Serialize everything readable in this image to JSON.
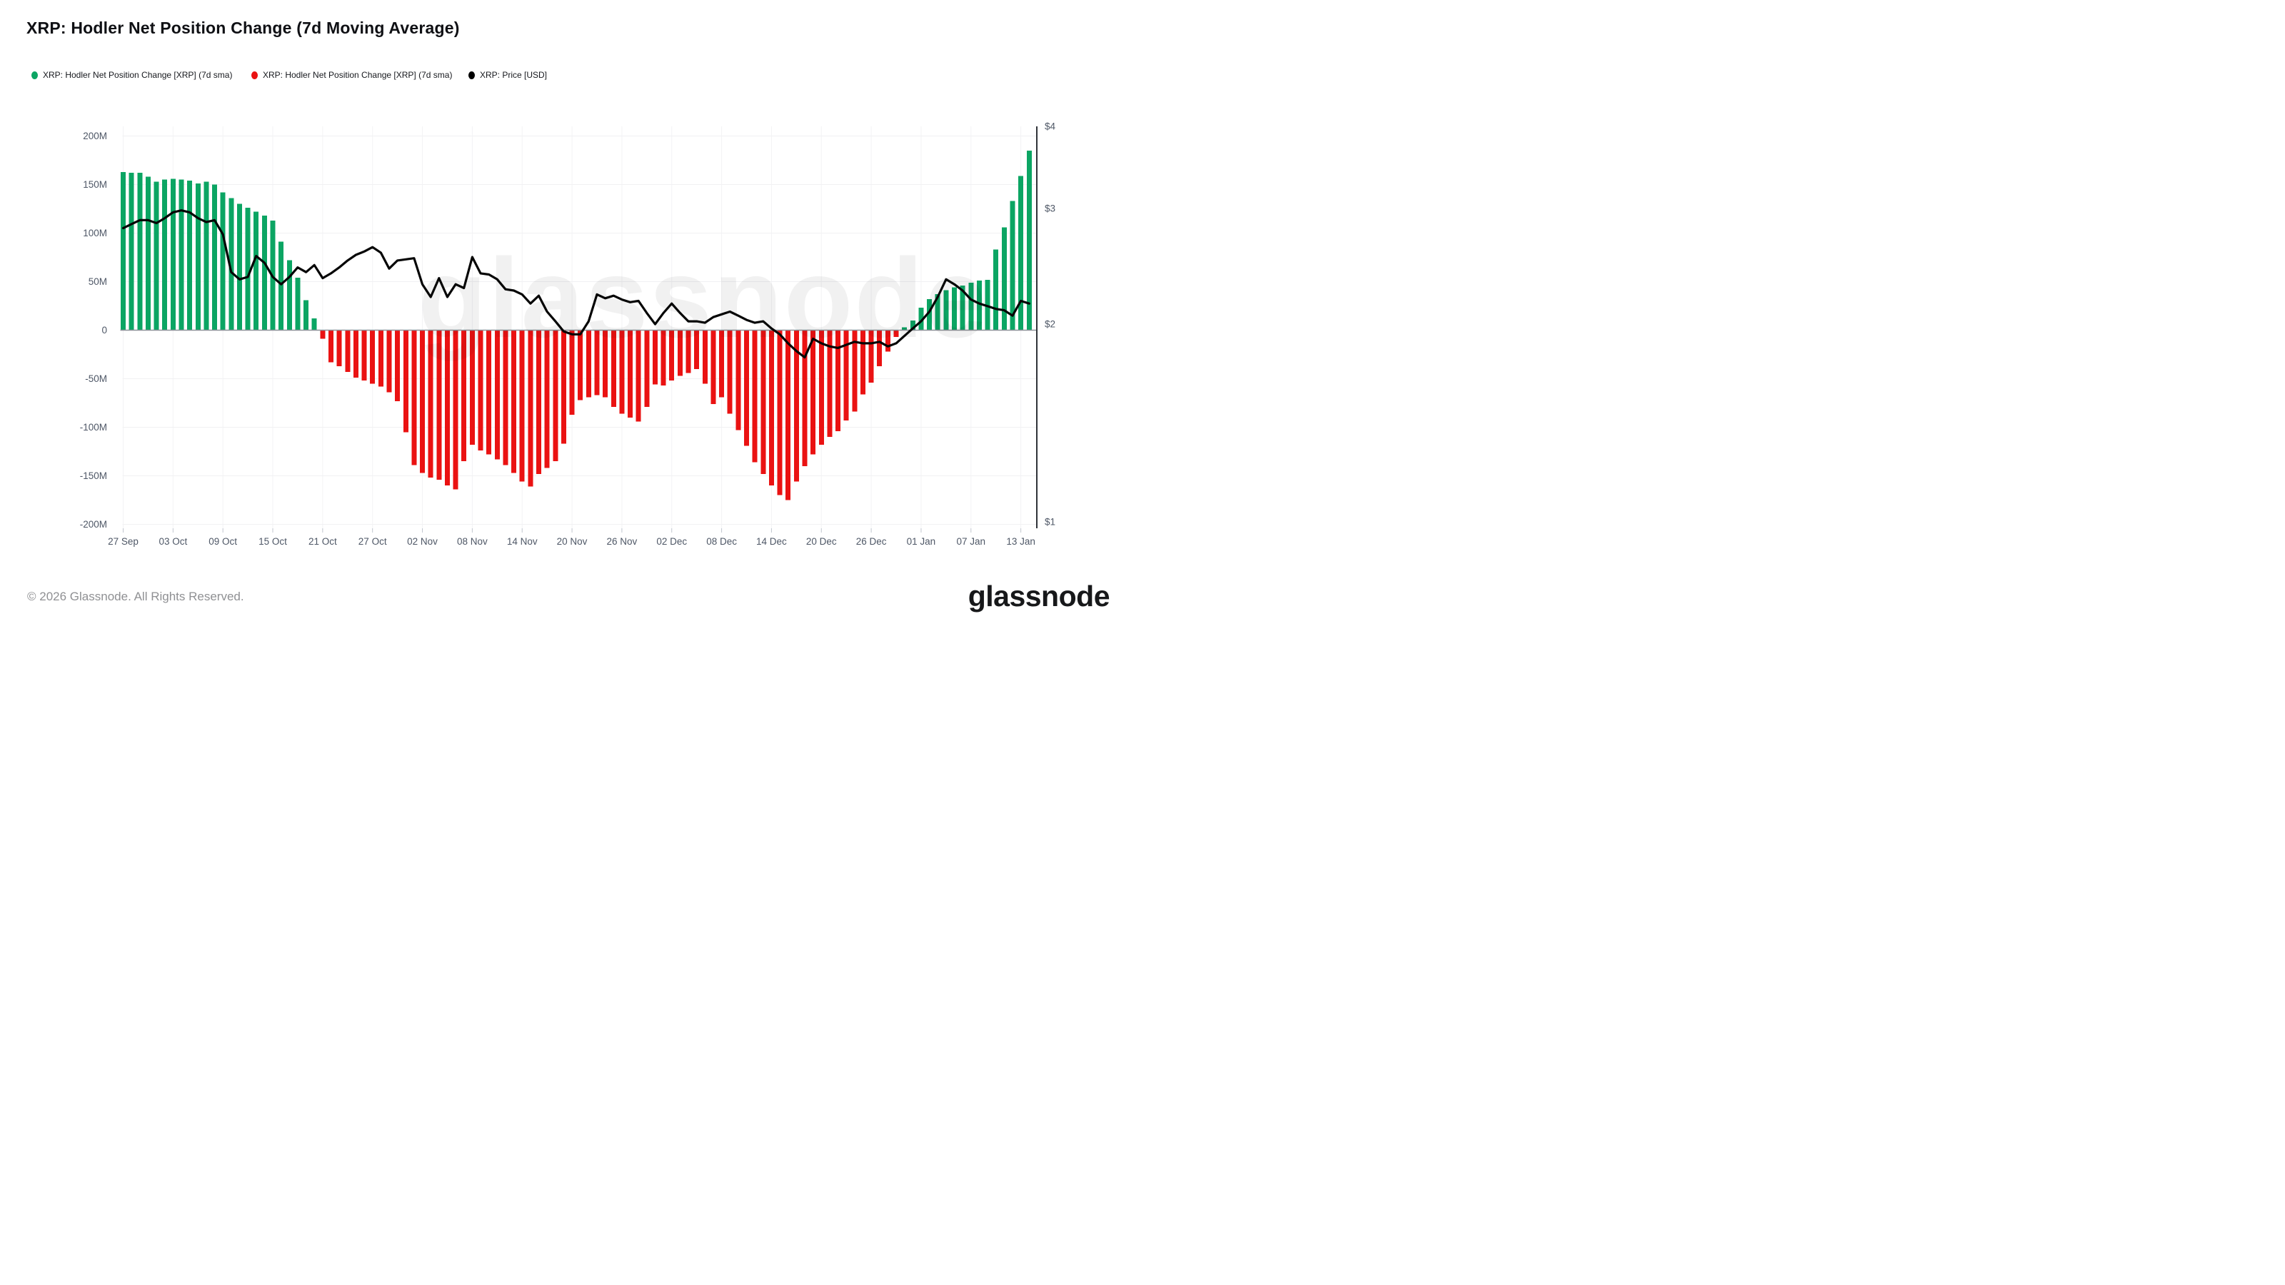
{
  "header": {
    "title": "XRP: Hodler Net Position Change (7d Moving Average)"
  },
  "legend": {
    "position": "top-left",
    "items": [
      {
        "label": "XRP: Hodler Net Position Change [XRP] (7d sma)",
        "color": "#0BA563",
        "icon": "green-dot-icon"
      },
      {
        "label": "XRP: Hodler Net Position Change [XRP] (7d sma)",
        "color": "#EA1212",
        "icon": "red-dot-icon"
      },
      {
        "label": "XRP: Price [USD]",
        "color": "#000000",
        "icon": "black-dot-icon"
      }
    ]
  },
  "watermark": {
    "text": "glassnode"
  },
  "footer": {
    "copyright": "© 2026 Glassnode. All Rights Reserved.",
    "logo_text": "glassnode"
  },
  "colors": {
    "bar_positive": "#0BA563",
    "bar_negative": "#EA1212",
    "price_line": "#050505",
    "grid_line": "#f1f1f3",
    "grid_line_vertical": "#f3f3f5",
    "zero_line": "#8e9299",
    "right_axis_line": "#2f3338",
    "axis_text": "#4e5766",
    "tick_mark": "#c2c7cf"
  },
  "chart_data": {
    "type": "bar",
    "title": "XRP: Hodler Net Position Change (7d Moving Average)",
    "xlabel": "",
    "ylabel_left": "Hodler Net Position Change (XRP, 7d sma)",
    "ylabel_right": "XRP Price (USD)",
    "grid": true,
    "left_axis": {
      "ylim": [
        -200000000,
        200000000
      ],
      "tick_values_m": [
        200,
        150,
        100,
        50,
        0,
        -50,
        -100,
        -150,
        -200
      ],
      "tick_labels": [
        "200M",
        "150M",
        "100M",
        "50M",
        "0",
        "-50M",
        "-100M",
        "-150M",
        "-200M"
      ]
    },
    "right_axis": {
      "scale": "log",
      "ylim": [
        1,
        4
      ],
      "tick_values": [
        4,
        3,
        2,
        1
      ],
      "tick_labels": [
        "$4",
        "$3",
        "$2",
        "$1"
      ]
    },
    "x_tick_labels": [
      "27 Sep",
      "03 Oct",
      "09 Oct",
      "15 Oct",
      "21 Oct",
      "27 Oct",
      "02 Nov",
      "08 Nov",
      "14 Nov",
      "20 Nov",
      "26 Nov",
      "02 Dec",
      "08 Dec",
      "14 Dec",
      "20 Dec",
      "26 Dec",
      "01 Jan",
      "07 Jan",
      "13 Jan"
    ],
    "x_tick_every_days": 6,
    "dates": [
      "2025-09-27",
      "2025-09-28",
      "2025-09-29",
      "2025-09-30",
      "2025-10-01",
      "2025-10-02",
      "2025-10-03",
      "2025-10-04",
      "2025-10-05",
      "2025-10-06",
      "2025-10-07",
      "2025-10-08",
      "2025-10-09",
      "2025-10-10",
      "2025-10-11",
      "2025-10-12",
      "2025-10-13",
      "2025-10-14",
      "2025-10-15",
      "2025-10-16",
      "2025-10-17",
      "2025-10-18",
      "2025-10-19",
      "2025-10-20",
      "2025-10-21",
      "2025-10-22",
      "2025-10-23",
      "2025-10-24",
      "2025-10-25",
      "2025-10-26",
      "2025-10-27",
      "2025-10-28",
      "2025-10-29",
      "2025-10-30",
      "2025-10-31",
      "2025-11-01",
      "2025-11-02",
      "2025-11-03",
      "2025-11-04",
      "2025-11-05",
      "2025-11-06",
      "2025-11-07",
      "2025-11-08",
      "2025-11-09",
      "2025-11-10",
      "2025-11-11",
      "2025-11-12",
      "2025-11-13",
      "2025-11-14",
      "2025-11-15",
      "2025-11-16",
      "2025-11-17",
      "2025-11-18",
      "2025-11-19",
      "2025-11-20",
      "2025-11-21",
      "2025-11-22",
      "2025-11-23",
      "2025-11-24",
      "2025-11-25",
      "2025-11-26",
      "2025-11-27",
      "2025-11-28",
      "2025-11-29",
      "2025-11-30",
      "2025-12-01",
      "2025-12-02",
      "2025-12-03",
      "2025-12-04",
      "2025-12-05",
      "2025-12-06",
      "2025-12-07",
      "2025-12-08",
      "2025-12-09",
      "2025-12-10",
      "2025-12-11",
      "2025-12-12",
      "2025-12-13",
      "2025-12-14",
      "2025-12-15",
      "2025-12-16",
      "2025-12-17",
      "2025-12-18",
      "2025-12-19",
      "2025-12-20",
      "2025-12-21",
      "2025-12-22",
      "2025-12-23",
      "2025-12-24",
      "2025-12-25",
      "2025-12-26",
      "2025-12-27",
      "2025-12-28",
      "2025-12-29",
      "2025-12-30",
      "2025-12-31",
      "2026-01-01",
      "2026-01-02",
      "2026-01-03",
      "2026-01-04",
      "2026-01-05",
      "2026-01-06",
      "2026-01-07",
      "2026-01-08",
      "2026-01-09",
      "2026-01-10",
      "2026-01-11",
      "2026-01-12",
      "2026-01-13",
      "2026-01-14"
    ],
    "series": [
      {
        "name": "XRP: Hodler Net Position Change [XRP] (7d sma)",
        "type": "bar",
        "axis": "left",
        "unit": "M XRP",
        "color_positive": "#0BA563",
        "color_negative": "#EA1212",
        "values_m": [
          163,
          162,
          162,
          158,
          153,
          155,
          156,
          155,
          154,
          151,
          153,
          150,
          142,
          136,
          130,
          126,
          122,
          118,
          113,
          91,
          72,
          54,
          31,
          12,
          -9,
          -33,
          -37,
          -43,
          -49,
          -52,
          -55,
          -58,
          -64,
          -73,
          -105,
          -139,
          -147,
          -152,
          -154,
          -160,
          -164,
          -135,
          -118,
          -124,
          -128,
          -133,
          -139,
          -147,
          -156,
          -161,
          -148,
          -142,
          -135,
          -117,
          -87,
          -72,
          -69,
          -67,
          -69,
          -79,
          -86,
          -90,
          -94,
          -79,
          -56,
          -57,
          -52,
          -47,
          -44,
          -40,
          -55,
          -76,
          -69,
          -86,
          -103,
          -119,
          -136,
          -148,
          -160,
          -170,
          -175,
          -156,
          -140,
          -128,
          -118,
          -110,
          -104,
          -93,
          -84,
          -66,
          -54,
          -37,
          -22,
          -7,
          3,
          10,
          23,
          32,
          37,
          41,
          44,
          46,
          49,
          51,
          52,
          83,
          106,
          133,
          159,
          185
        ]
      },
      {
        "name": "XRP: Price [USD]",
        "type": "line",
        "axis": "right",
        "unit": "USD",
        "color": "#050505",
        "values": [
          2.8,
          2.84,
          2.88,
          2.88,
          2.85,
          2.9,
          2.96,
          2.98,
          2.96,
          2.9,
          2.86,
          2.88,
          2.74,
          2.4,
          2.34,
          2.36,
          2.54,
          2.48,
          2.36,
          2.3,
          2.36,
          2.44,
          2.4,
          2.46,
          2.35,
          2.39,
          2.44,
          2.5,
          2.55,
          2.58,
          2.62,
          2.57,
          2.43,
          2.5,
          2.51,
          2.52,
          2.3,
          2.2,
          2.35,
          2.2,
          2.3,
          2.27,
          2.53,
          2.39,
          2.38,
          2.34,
          2.26,
          2.25,
          2.22,
          2.15,
          2.21,
          2.09,
          2.02,
          1.95,
          1.93,
          1.93,
          2.02,
          2.22,
          2.19,
          2.21,
          2.18,
          2.16,
          2.17,
          2.08,
          2.0,
          2.08,
          2.15,
          2.08,
          2.02,
          2.02,
          2.01,
          2.05,
          2.07,
          2.09,
          2.06,
          2.03,
          2.01,
          2.02,
          1.97,
          1.93,
          1.87,
          1.82,
          1.78,
          1.9,
          1.87,
          1.85,
          1.84,
          1.86,
          1.88,
          1.87,
          1.87,
          1.88,
          1.85,
          1.87,
          1.92,
          1.97,
          2.02,
          2.09,
          2.2,
          2.34,
          2.3,
          2.25,
          2.18,
          2.15,
          2.13,
          2.11,
          2.1,
          2.06,
          2.17,
          2.15
        ]
      }
    ]
  }
}
